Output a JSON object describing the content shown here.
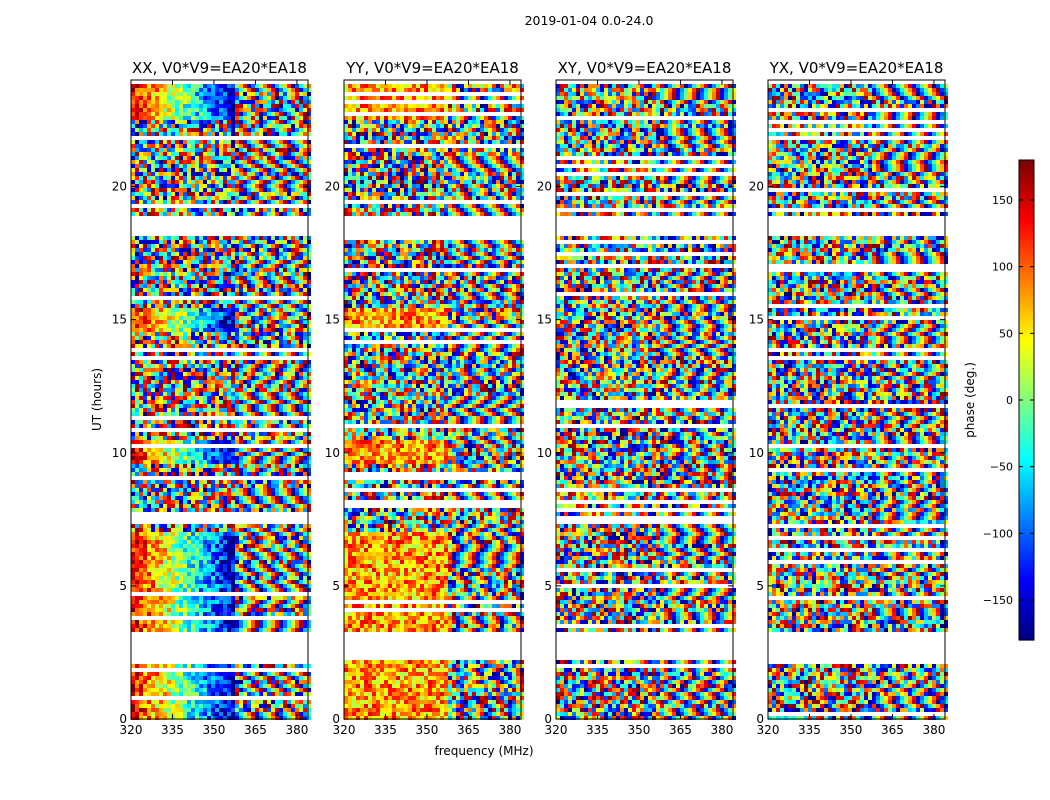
{
  "figure": {
    "suptitle": "2019-01-04 0.0-24.0"
  },
  "chart_data": {
    "type": "heatmap",
    "description_fields": "phase waterfall per polarization",
    "xlabel": "frequency (MHz)",
    "ylabel": "UT (hours)",
    "xlim": [
      320,
      384
    ],
    "ylim": [
      0,
      24
    ],
    "xticks": [
      {
        "pos": 320,
        "label": "320"
      },
      {
        "pos": 335,
        "label": "335"
      },
      {
        "pos": 350,
        "label": "350"
      },
      {
        "pos": 365,
        "label": "365"
      },
      {
        "pos": 380,
        "label": "380"
      }
    ],
    "yticks": [
      0,
      5,
      10,
      15,
      20
    ],
    "panels": [
      {
        "title": "XX, V0*V9=EA20*EA18",
        "pol": "XX"
      },
      {
        "title": "YY, V0*V9=EA20*EA18",
        "pol": "YY"
      },
      {
        "title": "XY, V0*V9=EA20*EA18",
        "pol": "XY"
      },
      {
        "title": "YX, V0*V9=EA20*EA18",
        "pol": "YX"
      }
    ],
    "flagged_time_ranges_hours": [
      [
        2.2,
        3.3
      ],
      [
        18.2,
        18.9
      ],
      [
        23.9,
        24.0
      ]
    ],
    "colorbar": {
      "label": "phase (deg.)",
      "range": [
        -180,
        180
      ],
      "ticks": [
        -150,
        -100,
        -50,
        0,
        50,
        100,
        150
      ],
      "tick_labels": [
        "−150",
        "−100",
        "−50",
        "0",
        "50",
        "100",
        "150"
      ],
      "colormap": "jet"
    }
  }
}
